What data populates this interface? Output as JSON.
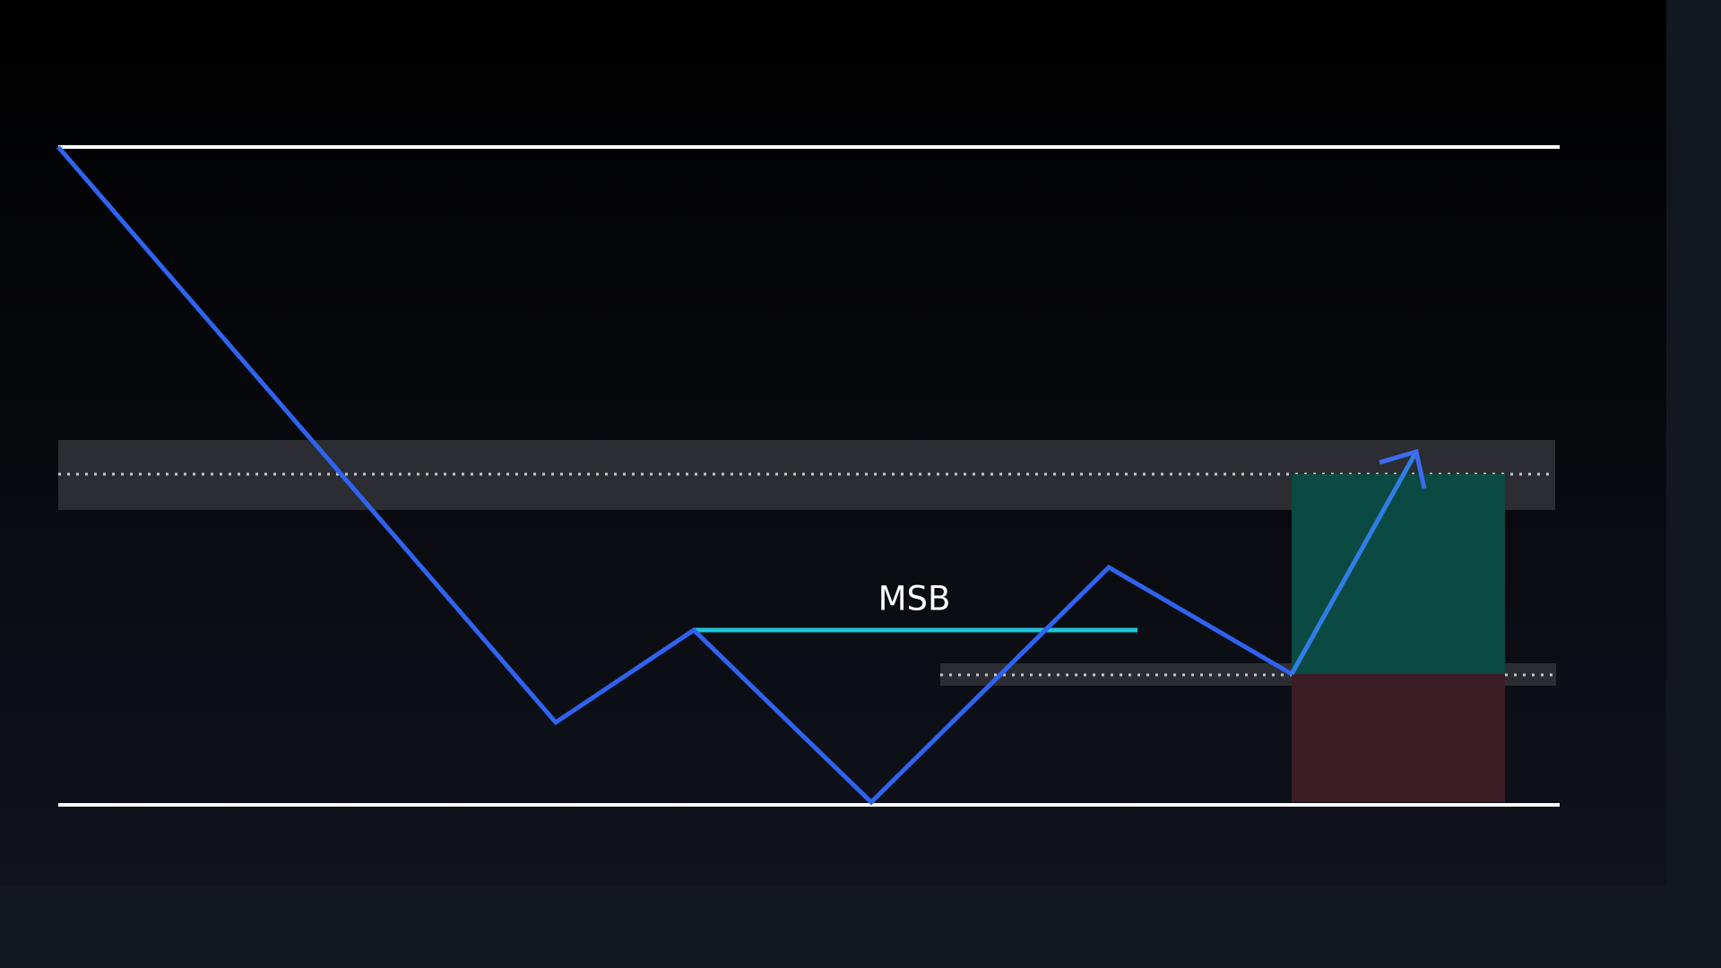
{
  "label": "MSB"
}
